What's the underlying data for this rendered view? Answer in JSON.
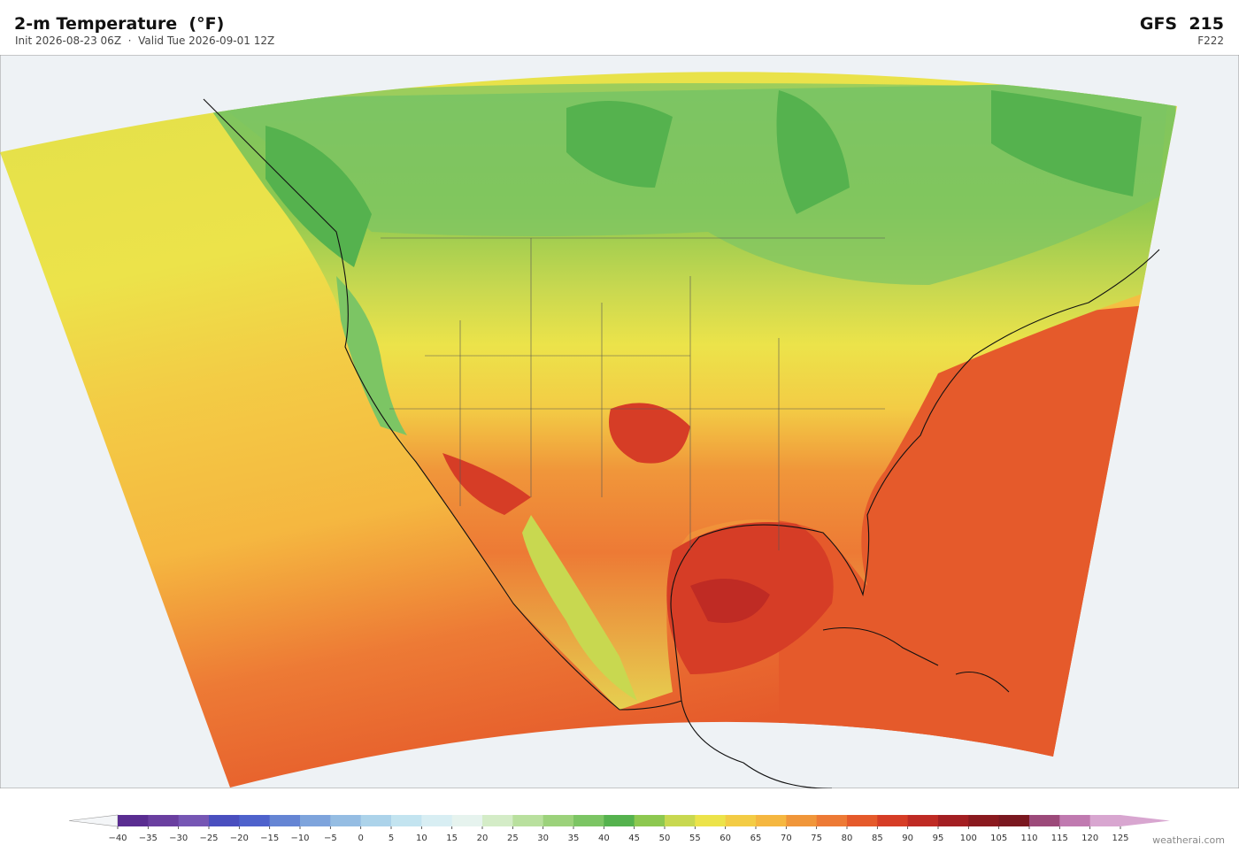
{
  "header": {
    "title": "2-m Temperature  (°F)",
    "subtitle": "Init 2026-08-23 06Z  ·  Valid Tue 2026-09-01 12Z",
    "model": "GFS  215",
    "forecast_hour": "F222"
  },
  "colorbar": {
    "labels": [
      "−40",
      "−35",
      "−30",
      "−25",
      "−20",
      "−15",
      "−10",
      "−5",
      "0",
      "5",
      "10",
      "15",
      "20",
      "25",
      "30",
      "35",
      "40",
      "45",
      "50",
      "55",
      "60",
      "65",
      "70",
      "75",
      "80",
      "85",
      "90",
      "95",
      "100",
      "105",
      "110",
      "115",
      "120",
      "125"
    ],
    "colors": [
      "#5a2d91",
      "#6a3fa0",
      "#7656b4",
      "#4a4fbf",
      "#4e62cc",
      "#6585d4",
      "#7ea4dc",
      "#95bde3",
      "#acd3ea",
      "#c3e4f0",
      "#d8eef3",
      "#e6f3ee",
      "#d4ecc7",
      "#b9e09e",
      "#9cd27b",
      "#7cc564",
      "#55b24e",
      "#8dc850",
      "#c8d850",
      "#ece34a",
      "#f3cc45",
      "#f5b740",
      "#f0963a",
      "#ed7a35",
      "#e55a2b",
      "#d63d26",
      "#bf2b24",
      "#a31f22",
      "#8a1a1f",
      "#7a1820",
      "#9c4a7a",
      "#c07ab0",
      "#d8a6d0"
    ]
  },
  "footer": {
    "credit": "weatherai.com"
  }
}
